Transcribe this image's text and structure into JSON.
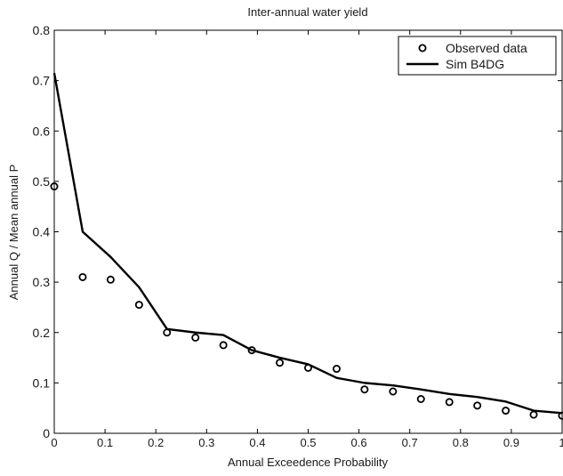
{
  "chart_data": {
    "type": "line",
    "title": "Inter-annual water yield",
    "xlabel": "Annual Exceedence Probability",
    "ylabel": "Annual Q / Mean annual P",
    "xlim": [
      0,
      1
    ],
    "ylim": [
      0,
      0.8
    ],
    "xticks": [
      0,
      0.1,
      0.2,
      0.3,
      0.4,
      0.5,
      0.6,
      0.7,
      0.8,
      0.9,
      1
    ],
    "xtick_labels": [
      "0",
      "0.1",
      "0.2",
      "0.3",
      "0.4",
      "0.5",
      "0.6",
      "0.7",
      "0.8",
      "0.9",
      "1"
    ],
    "yticks": [
      0,
      0.1,
      0.2,
      0.3,
      0.4,
      0.5,
      0.6,
      0.7,
      0.8
    ],
    "ytick_labels": [
      "0",
      "0.1",
      "0.2",
      "0.3",
      "0.4",
      "0.5",
      "0.6",
      "0.7",
      "0.8"
    ],
    "grid": false,
    "legend_position": "top-right",
    "series": [
      {
        "name": "Observed data",
        "style": "markers",
        "marker": "open-circle",
        "color": "#000000",
        "x": [
          0.0,
          0.056,
          0.111,
          0.167,
          0.222,
          0.278,
          0.333,
          0.389,
          0.444,
          0.5,
          0.556,
          0.611,
          0.667,
          0.722,
          0.778,
          0.833,
          0.889,
          0.944,
          1.0
        ],
        "y": [
          0.49,
          0.31,
          0.305,
          0.255,
          0.2,
          0.19,
          0.175,
          0.165,
          0.14,
          0.13,
          0.128,
          0.087,
          0.083,
          0.068,
          0.062,
          0.055,
          0.045,
          0.037,
          0.035
        ]
      },
      {
        "name": "Sim B4DG",
        "style": "line",
        "color": "#000000",
        "x": [
          0.0,
          0.056,
          0.111,
          0.167,
          0.222,
          0.278,
          0.333,
          0.389,
          0.444,
          0.5,
          0.556,
          0.611,
          0.667,
          0.722,
          0.778,
          0.833,
          0.889,
          0.944,
          1.0
        ],
        "y": [
          0.715,
          0.4,
          0.35,
          0.29,
          0.207,
          0.2,
          0.195,
          0.165,
          0.15,
          0.137,
          0.11,
          0.1,
          0.095,
          0.087,
          0.078,
          0.072,
          0.063,
          0.045,
          0.04
        ]
      }
    ]
  }
}
